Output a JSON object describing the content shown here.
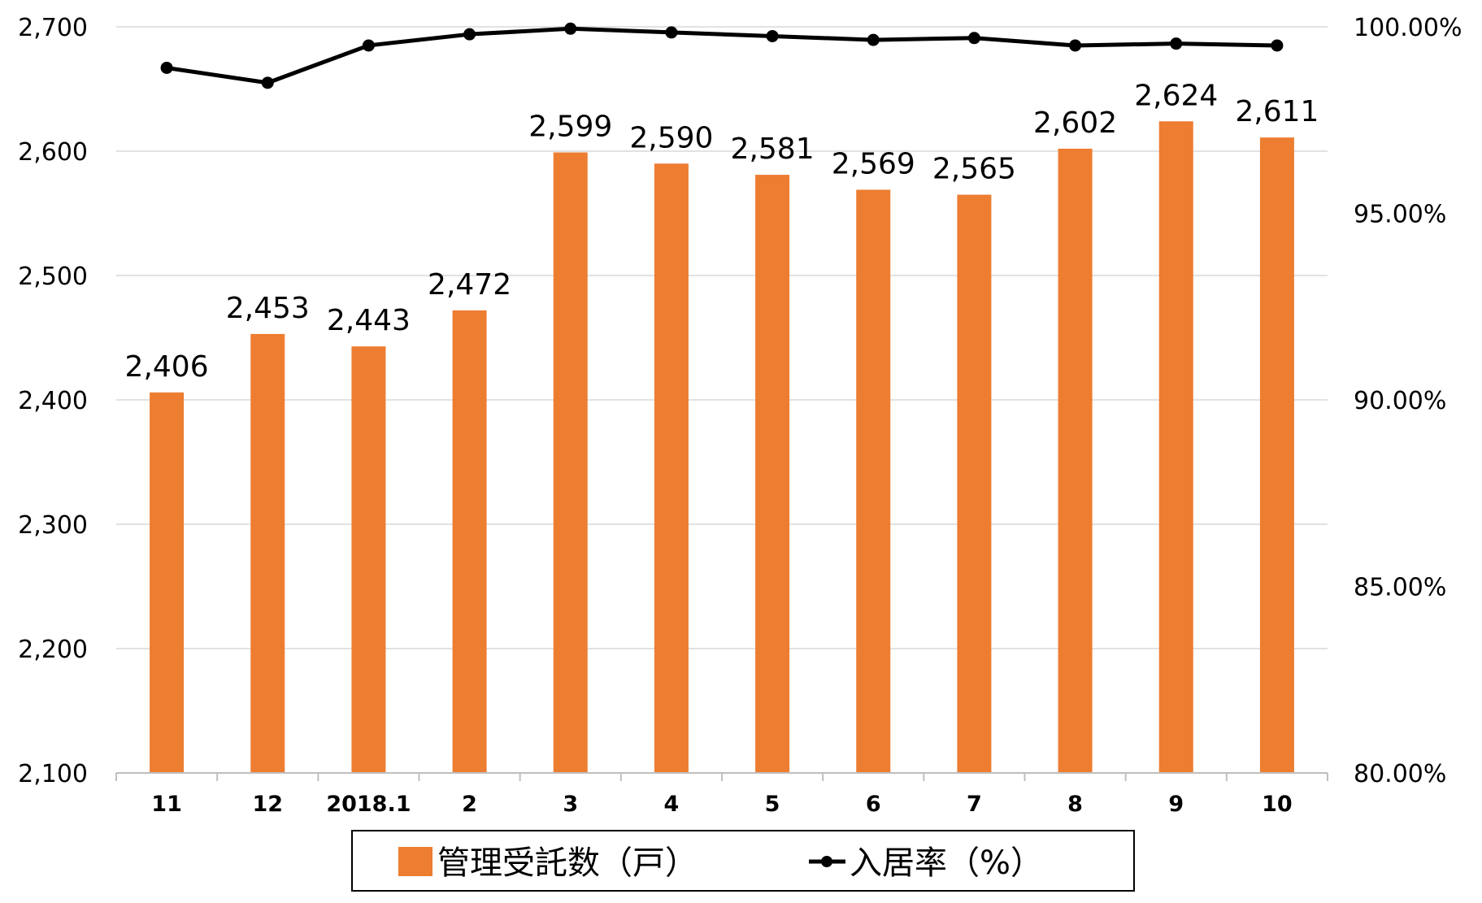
{
  "chart_data": {
    "type": "bar+line",
    "categories": [
      "11",
      "12",
      "2018.1",
      "2",
      "3",
      "4",
      "5",
      "6",
      "7",
      "8",
      "9",
      "10"
    ],
    "series": [
      {
        "name": "管理受託数（戸）",
        "type": "bar",
        "axis": "left",
        "color": "#ED7D31",
        "values": [
          2406,
          2453,
          2443,
          2472,
          2599,
          2590,
          2581,
          2569,
          2565,
          2602,
          2624,
          2611
        ],
        "data_labels": [
          "2,406",
          "2,453",
          "2,443",
          "2,472",
          "2,599",
          "2,590",
          "2,581",
          "2,569",
          "2,565",
          "2,602",
          "2,624",
          "2,611"
        ]
      },
      {
        "name": "入居率（%）",
        "type": "line",
        "axis": "right",
        "color": "#000000",
        "marker": "circle",
        "values": [
          98.9,
          98.5,
          99.5,
          99.8,
          99.95,
          99.85,
          99.75,
          99.65,
          99.7,
          99.5,
          99.55,
          99.5
        ]
      }
    ],
    "y_left": {
      "min": 2100,
      "max": 2700,
      "ticks": [
        2100,
        2200,
        2300,
        2400,
        2500,
        2600,
        2700
      ],
      "tick_labels": [
        "2,100",
        "2,200",
        "2,300",
        "2,400",
        "2,500",
        "2,600",
        "2,700"
      ]
    },
    "y_right": {
      "min": 80,
      "max": 100,
      "ticks": [
        80,
        85,
        90,
        95,
        100
      ],
      "tick_labels": [
        "80.00%",
        "85.00%",
        "90.00%",
        "95.00%",
        "100.00%"
      ]
    },
    "grid": true,
    "legend_position": "bottom"
  }
}
